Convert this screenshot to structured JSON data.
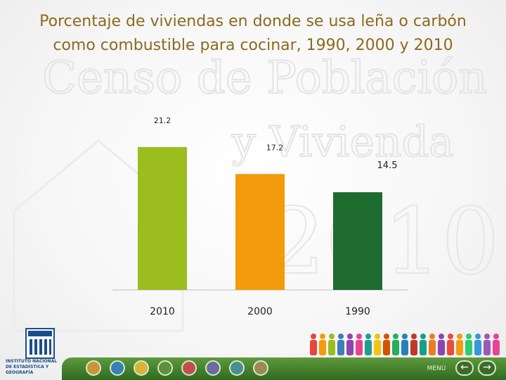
{
  "slide": {
    "title_line1": "Porcentaje de viviendas en donde se usa leña o carbón",
    "title_line2": "como combustible para cocinar, 1990, 2000 y 2010"
  },
  "watermark": {
    "line1": "Censo de Población",
    "line2": "y Vivienda",
    "line3": "2010"
  },
  "logo": {
    "line1": "INSTITUTO NACIONAL",
    "line2": "DE ESTADÍSTICA Y GEOGRAFÍA"
  },
  "footer": {
    "menu_label": "MENÚ",
    "prev_glyph": "←",
    "next_glyph": "→"
  },
  "chart_data": {
    "type": "bar",
    "categories": [
      "2010",
      "2000",
      "1990"
    ],
    "values": [
      21.2,
      17.2,
      14.5
    ],
    "data_labels": [
      "21.2",
      "17.2",
      "14.5"
    ],
    "colors": [
      "#9bbd1e",
      "#f39a0d",
      "#1e6b30"
    ],
    "xlabel": "",
    "ylabel": "",
    "ylim": [
      0,
      25
    ],
    "grid": false,
    "legend": "none"
  }
}
